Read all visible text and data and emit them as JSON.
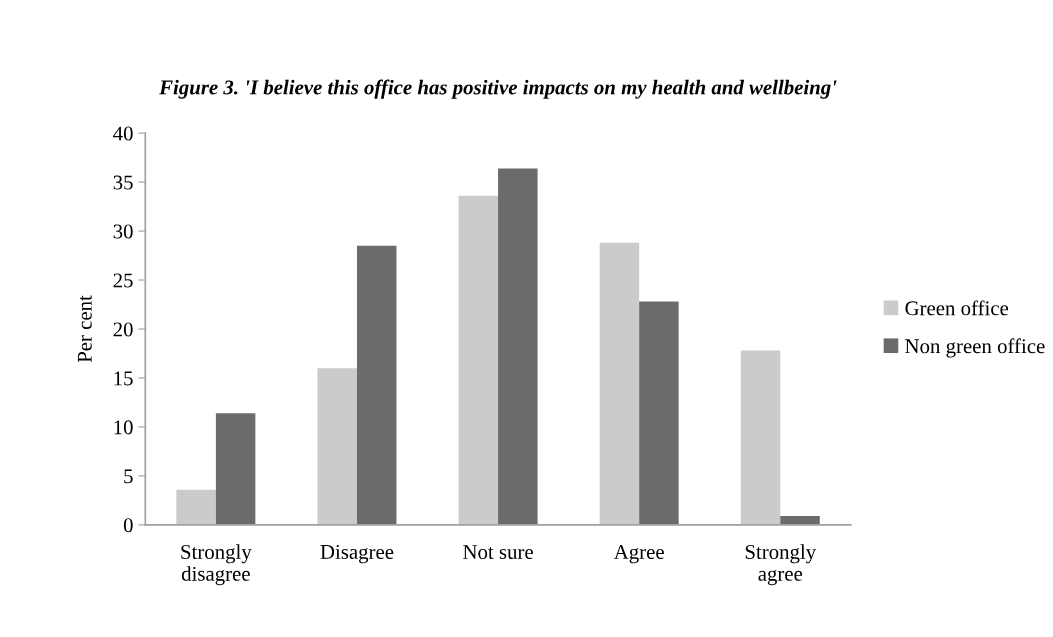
{
  "chart_data": {
    "type": "bar",
    "title": "Figure 3. 'I believe this office has positive impacts on my health and wellbeing'",
    "ylabel": "Per cent",
    "categories": [
      "Strongly\ndisagree",
      "Disagree",
      "Not sure",
      "Agree",
      "Strongly\nagree"
    ],
    "series": [
      {
        "name": "Green office",
        "color": "#cbcbcb",
        "values": [
          3.6,
          16.0,
          33.6,
          28.8,
          17.8
        ]
      },
      {
        "name": "Non green office",
        "color": "#6b6b6b",
        "values": [
          11.4,
          28.5,
          36.4,
          22.8,
          0.9
        ]
      }
    ],
    "ylim": [
      0,
      40
    ],
    "yticks": [
      0,
      5,
      10,
      15,
      20,
      25,
      30,
      35,
      40
    ],
    "grid": false,
    "legend": "right"
  }
}
